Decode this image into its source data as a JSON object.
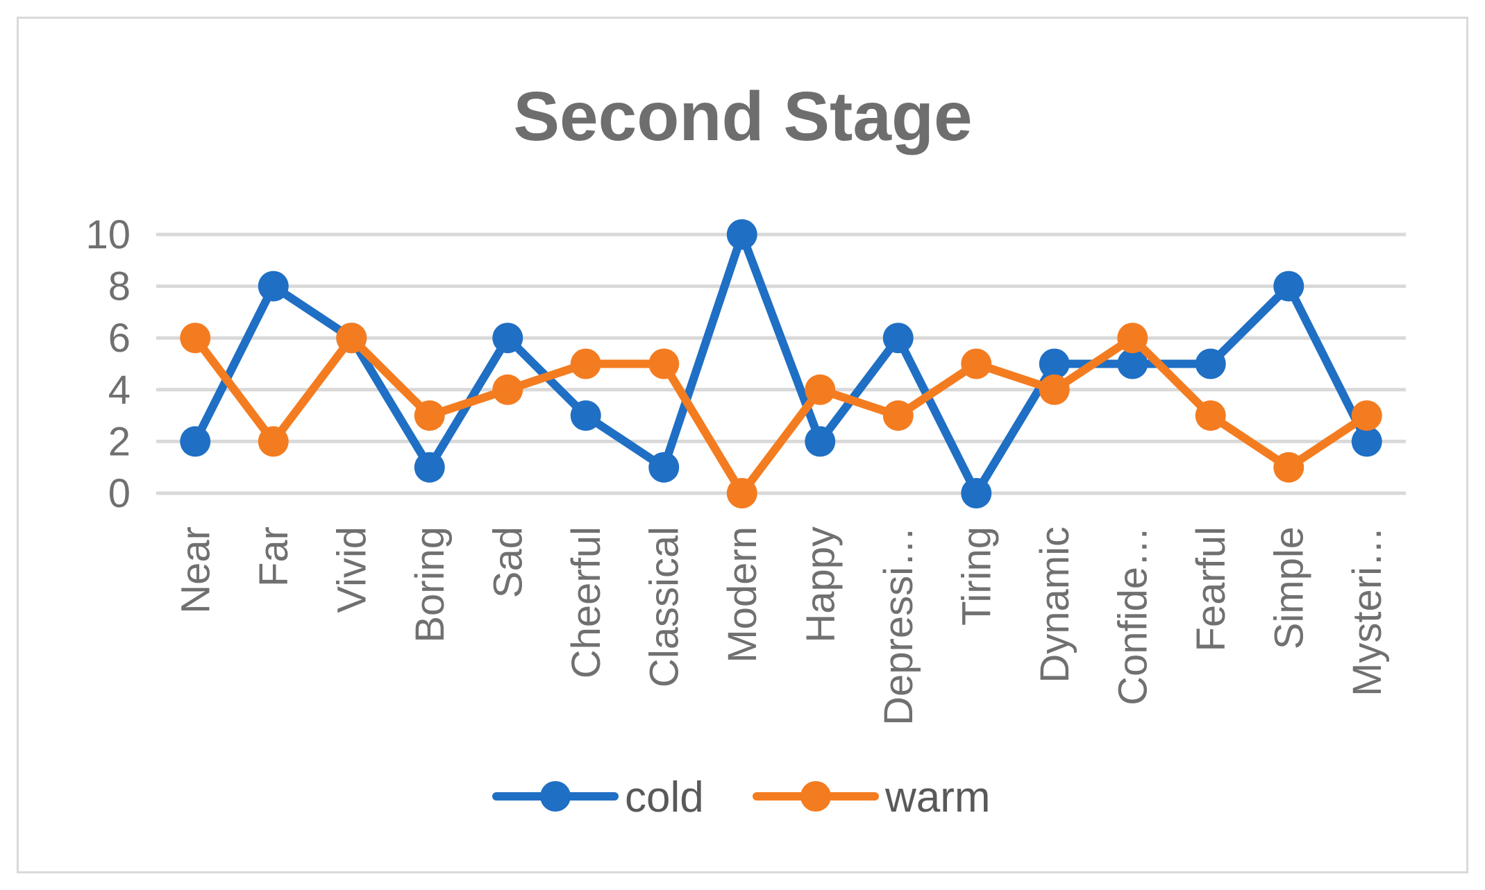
{
  "chart_data": {
    "type": "line",
    "title": "Second Stage",
    "categories": [
      "Near",
      "Far",
      "Vivid",
      "Boring",
      "Sad",
      "Cheerful",
      "Classical",
      "Modern",
      "Happy",
      "Depressi…",
      "Tiring",
      "Dynamic",
      "Confide…",
      "Fearful",
      "Simple",
      "Mysteri…"
    ],
    "series": [
      {
        "name": "cold",
        "color": "#1f6fc4",
        "values": [
          2,
          8,
          6,
          1,
          6,
          3,
          1,
          10,
          2,
          6,
          0,
          5,
          5,
          5,
          8,
          2
        ]
      },
      {
        "name": "warm",
        "color": "#f47c20",
        "values": [
          6,
          2,
          6,
          3,
          4,
          5,
          5,
          0,
          4,
          3,
          5,
          4,
          6,
          3,
          1,
          3
        ]
      }
    ],
    "ylim": [
      0,
      10
    ],
    "yticks": [
      "0",
      "2",
      "4",
      "6",
      "8",
      "10"
    ],
    "grid": true,
    "legend": "bottom",
    "xlabel": "",
    "ylabel": ""
  }
}
